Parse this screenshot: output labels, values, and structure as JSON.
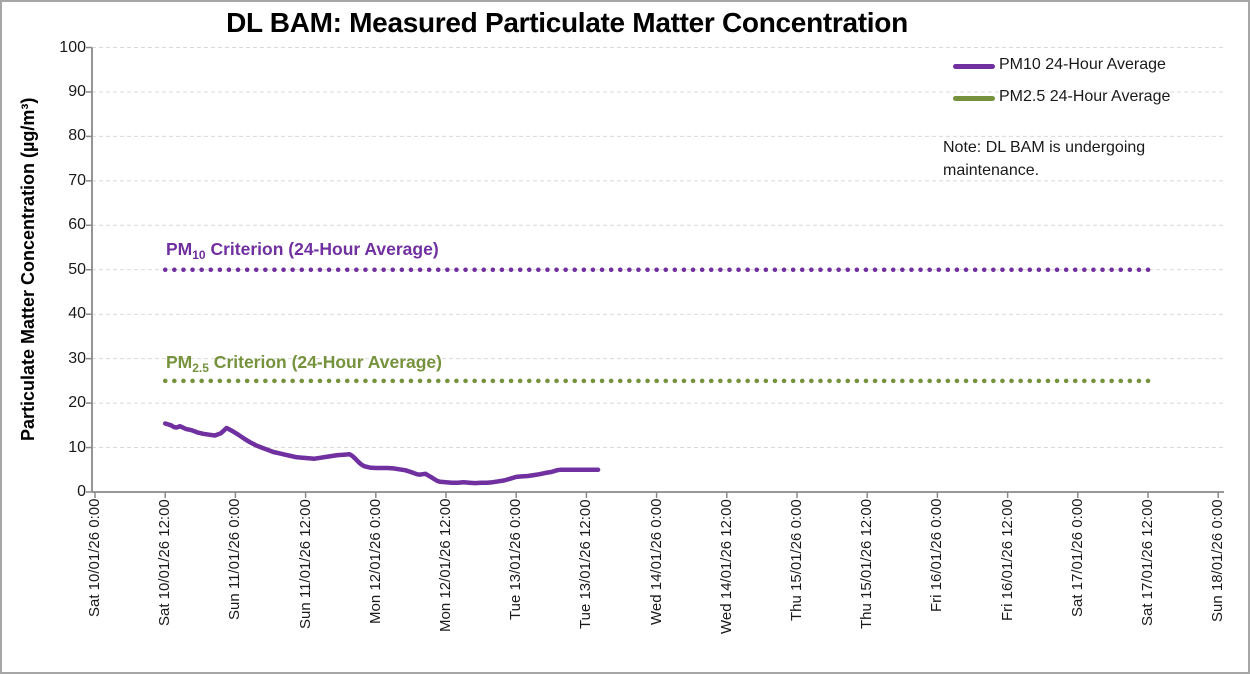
{
  "colors": {
    "background": "#FFFFFF",
    "page_border": "#A6A6A6",
    "gridline": "#D9D9D9",
    "axis": "#898989",
    "text": "#1A1A1A",
    "pm10_purple": "#7030A0",
    "pm25_olive": "#76923C"
  },
  "chart_data": {
    "type": "line",
    "title": "DL BAM: Measured Particulate Matter Concentration",
    "ylabel": "Particulate Matter Concentration (µg/m³)",
    "xlabel": "",
    "ylim": [
      0,
      100
    ],
    "yticks": [
      0,
      10,
      20,
      30,
      40,
      50,
      60,
      70,
      80,
      90,
      100
    ],
    "grid": "horizontal dashed gridlines at every 10 µg/m³",
    "legend_position": "top-right inside plot",
    "x_tick_interval_hours": 12,
    "xtick_labels": [
      "Sat 10/01/26 0:00",
      "Sat 10/01/26 12:00",
      "Sun 11/01/26 0:00",
      "Sun 11/01/26 12:00",
      "Mon 12/01/26 0:00",
      "Mon 12/01/26 12:00",
      "Tue 13/01/26 0:00",
      "Tue 13/01/26 12:00",
      "Wed 14/01/26 0:00",
      "Wed 14/01/26 12:00",
      "Thu 15/01/26 0:00",
      "Thu 15/01/26 12:00",
      "Fri 16/01/26 0:00",
      "Fri 16/01/26 12:00",
      "Sat 17/01/26 0:00",
      "Sat 17/01/26 12:00",
      "Sun 18/01/26 0:00"
    ],
    "series": [
      {
        "name": "PM10 24-Hour Average",
        "color": "#7030A0",
        "style": "solid",
        "points_unit": "[hours since Sat 10/01/26 0:00, µg/m³]",
        "points": [
          [
            12,
            15.4
          ],
          [
            12.5,
            15.2
          ],
          [
            13,
            15.0
          ],
          [
            13.5,
            14.6
          ],
          [
            14,
            14.5
          ],
          [
            14.5,
            14.8
          ],
          [
            15,
            14.5
          ],
          [
            15.5,
            14.2
          ],
          [
            16.5,
            13.9
          ],
          [
            17.5,
            13.4
          ],
          [
            18.5,
            13.1
          ],
          [
            19.5,
            12.9
          ],
          [
            20.5,
            12.7
          ],
          [
            21.5,
            13.2
          ],
          [
            22,
            13.8
          ],
          [
            22.5,
            14.4
          ],
          [
            23.5,
            13.7
          ],
          [
            24.5,
            12.9
          ],
          [
            25.5,
            12.0
          ],
          [
            26.5,
            11.2
          ],
          [
            27.5,
            10.5
          ],
          [
            28.5,
            10.0
          ],
          [
            29.5,
            9.5
          ],
          [
            30.5,
            9.0
          ],
          [
            31.5,
            8.7
          ],
          [
            32.5,
            8.4
          ],
          [
            33.5,
            8.1
          ],
          [
            34.5,
            7.8
          ],
          [
            35.5,
            7.7
          ],
          [
            36.5,
            7.6
          ],
          [
            37.5,
            7.5
          ],
          [
            38.5,
            7.7
          ],
          [
            39.5,
            7.9
          ],
          [
            40.5,
            8.1
          ],
          [
            41.5,
            8.3
          ],
          [
            42.5,
            8.4
          ],
          [
            43.5,
            8.5
          ],
          [
            44,
            8.1
          ],
          [
            44.5,
            7.5
          ],
          [
            45,
            6.8
          ],
          [
            45.5,
            6.2
          ],
          [
            46,
            5.8
          ],
          [
            47,
            5.5
          ],
          [
            48,
            5.4
          ],
          [
            49,
            5.4
          ],
          [
            50,
            5.4
          ],
          [
            51,
            5.3
          ],
          [
            52,
            5.1
          ],
          [
            53,
            4.9
          ],
          [
            54,
            4.5
          ],
          [
            55,
            4.0
          ],
          [
            55.5,
            3.9
          ],
          [
            56,
            4.0
          ],
          [
            56.5,
            4.1
          ],
          [
            57,
            3.7
          ],
          [
            57.5,
            3.3
          ],
          [
            58,
            2.9
          ],
          [
            58.5,
            2.5
          ],
          [
            59,
            2.3
          ],
          [
            60,
            2.2
          ],
          [
            61,
            2.1
          ],
          [
            62,
            2.1
          ],
          [
            63,
            2.2
          ],
          [
            64,
            2.1
          ],
          [
            65,
            2.0
          ],
          [
            66,
            2.1
          ],
          [
            67,
            2.1
          ],
          [
            68,
            2.2
          ],
          [
            69,
            2.4
          ],
          [
            70,
            2.6
          ],
          [
            71,
            3.0
          ],
          [
            72,
            3.4
          ],
          [
            73,
            3.5
          ],
          [
            74,
            3.6
          ],
          [
            75,
            3.8
          ],
          [
            76,
            4.0
          ],
          [
            77,
            4.3
          ],
          [
            78,
            4.5
          ],
          [
            78.5,
            4.7
          ],
          [
            79,
            4.9
          ],
          [
            79.5,
            5.0
          ],
          [
            80.5,
            5.0
          ],
          [
            82,
            5.0
          ],
          [
            83,
            5.0
          ],
          [
            84,
            5.0
          ],
          [
            85,
            5.0
          ],
          [
            86,
            5.0
          ]
        ]
      },
      {
        "name": "PM2.5 24-Hour Average",
        "color": "#76923C",
        "style": "solid",
        "points_unit": "[hours since Sat 10/01/26 0:00, µg/m³]",
        "points": []
      }
    ],
    "reference_lines": [
      {
        "label_prefix": "PM",
        "label_sub": "10",
        "label_rest": " Criterion (24-Hour Average)",
        "value": 50,
        "color": "#7030A0",
        "style": "round-dotted",
        "span_hours": [
          12,
          181
        ]
      },
      {
        "label_prefix": "PM",
        "label_sub": "2.5",
        "label_rest": " Criterion (24-Hour Average)",
        "value": 25,
        "color": "#76923C",
        "style": "round-dotted",
        "span_hours": [
          12,
          181
        ]
      }
    ],
    "note": "Note: DL BAM is undergoing maintenance."
  }
}
